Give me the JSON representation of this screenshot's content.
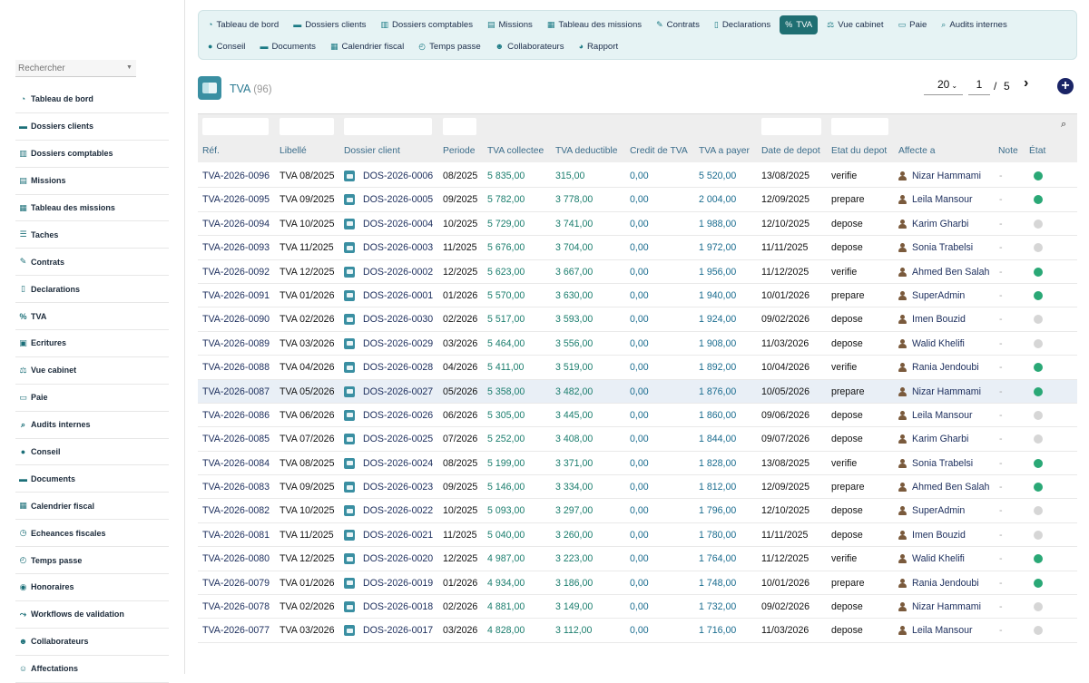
{
  "sidebar": {
    "search_placeholder": "Rechercher",
    "items": [
      {
        "label": "Tableau de bord",
        "icon": "dashboard-icon",
        "glyph": "◔"
      },
      {
        "label": "Dossiers clients",
        "icon": "folder-open-icon",
        "glyph": "▬"
      },
      {
        "label": "Dossiers comptables",
        "icon": "book-icon",
        "glyph": "▥"
      },
      {
        "label": "Missions",
        "icon": "briefcase-icon",
        "glyph": "▤"
      },
      {
        "label": "Tableau des missions",
        "icon": "table-icon",
        "glyph": "▦"
      },
      {
        "label": "Taches",
        "icon": "list-icon",
        "glyph": "☰"
      },
      {
        "label": "Contrats",
        "icon": "contract-icon",
        "glyph": "✎"
      },
      {
        "label": "Declarations",
        "icon": "document-icon",
        "glyph": "▯"
      },
      {
        "label": "TVA",
        "icon": "percent-icon",
        "glyph": "%"
      },
      {
        "label": "Ecritures",
        "icon": "ledger-icon",
        "glyph": "▣"
      },
      {
        "label": "Vue cabinet",
        "icon": "balance-scale-icon",
        "glyph": "⚖"
      },
      {
        "label": "Paie",
        "icon": "money-icon",
        "glyph": "▭"
      },
      {
        "label": "Audits internes",
        "icon": "search-icon",
        "glyph": "⌕"
      },
      {
        "label": "Conseil",
        "icon": "lightbulb-icon",
        "glyph": "●"
      },
      {
        "label": "Documents",
        "icon": "folder-icon",
        "glyph": "▬"
      },
      {
        "label": "Calendrier fiscal",
        "icon": "calendar-icon",
        "glyph": "▦"
      },
      {
        "label": "Echeances fiscales",
        "icon": "clock-icon",
        "glyph": "◷"
      },
      {
        "label": "Temps passe",
        "icon": "stopwatch-icon",
        "glyph": "◴"
      },
      {
        "label": "Honoraires",
        "icon": "money-bag-icon",
        "glyph": "◉"
      },
      {
        "label": "Workflows de validation",
        "icon": "workflow-icon",
        "glyph": "⤳"
      },
      {
        "label": "Collaborateurs",
        "icon": "users-icon",
        "glyph": "☻"
      },
      {
        "label": "Affectations",
        "icon": "user-tag-icon",
        "glyph": "☺"
      }
    ]
  },
  "topnav": {
    "row1": [
      {
        "label": "Tableau de bord",
        "icon": "dashboard-icon",
        "glyph": "◔",
        "active": false
      },
      {
        "label": "Dossiers clients",
        "icon": "folder-open-icon",
        "glyph": "▬",
        "active": false
      },
      {
        "label": "Dossiers comptables",
        "icon": "book-icon",
        "glyph": "▥",
        "active": false
      },
      {
        "label": "Missions",
        "icon": "briefcase-icon",
        "glyph": "▤",
        "active": false
      },
      {
        "label": "Tableau des missions",
        "icon": "table-icon",
        "glyph": "▦",
        "active": false
      },
      {
        "label": "Contrats",
        "icon": "contract-icon",
        "glyph": "✎",
        "active": false
      },
      {
        "label": "Declarations",
        "icon": "document-icon",
        "glyph": "▯",
        "active": false
      },
      {
        "label": "TVA",
        "icon": "percent-icon",
        "glyph": "%",
        "active": true
      },
      {
        "label": "Vue cabinet",
        "icon": "balance-scale-icon",
        "glyph": "⚖",
        "active": false
      },
      {
        "label": "Paie",
        "icon": "money-icon",
        "glyph": "▭",
        "active": false
      },
      {
        "label": "Audits internes",
        "icon": "search-icon",
        "glyph": "⌕",
        "active": false
      }
    ],
    "row2": [
      {
        "label": "Conseil",
        "icon": "lightbulb-icon",
        "glyph": "●",
        "active": false
      },
      {
        "label": "Documents",
        "icon": "folder-icon",
        "glyph": "▬",
        "active": false
      },
      {
        "label": "Calendrier fiscal",
        "icon": "calendar-icon",
        "glyph": "▦",
        "active": false
      },
      {
        "label": "Temps passe",
        "icon": "stopwatch-icon",
        "glyph": "◴",
        "active": false
      },
      {
        "label": "Collaborateurs",
        "icon": "users-icon",
        "glyph": "☻",
        "active": false
      },
      {
        "label": "Rapport",
        "icon": "pie-chart-icon",
        "glyph": "◕",
        "active": false
      }
    ]
  },
  "page": {
    "title": "TVA",
    "count": "(96)",
    "page_size": "20",
    "current_page": "1",
    "page_sep": "/",
    "total_pages": "5"
  },
  "table": {
    "columns": [
      "Réf.",
      "Libellé",
      "Dossier client",
      "Periode",
      "TVA collectee",
      "TVA deductible",
      "Credit de TVA",
      "TVA a payer",
      "Date de depot",
      "Etat du depot",
      "Affecte a",
      "Note",
      "État"
    ],
    "rows": [
      {
        "ref": "TVA-2026-0096",
        "libelle": "TVA 08/2025",
        "dossier": "DOS-2026-0006",
        "periode": "08/2025",
        "collectee": "5 835,00",
        "deductible": "315,00",
        "credit": "0,00",
        "payer": "5 520,00",
        "date": "13/08/2025",
        "etat_depot": "verifie",
        "affecte": "Nizar Hammami",
        "note": "-",
        "status": "green"
      },
      {
        "ref": "TVA-2026-0095",
        "libelle": "TVA 09/2025",
        "dossier": "DOS-2026-0005",
        "periode": "09/2025",
        "collectee": "5 782,00",
        "deductible": "3 778,00",
        "credit": "0,00",
        "payer": "2 004,00",
        "date": "12/09/2025",
        "etat_depot": "prepare",
        "affecte": "Leila Mansour",
        "note": "-",
        "status": "green"
      },
      {
        "ref": "TVA-2026-0094",
        "libelle": "TVA 10/2025",
        "dossier": "DOS-2026-0004",
        "periode": "10/2025",
        "collectee": "5 729,00",
        "deductible": "3 741,00",
        "credit": "0,00",
        "payer": "1 988,00",
        "date": "12/10/2025",
        "etat_depot": "depose",
        "affecte": "Karim Gharbi",
        "note": "-",
        "status": "grey"
      },
      {
        "ref": "TVA-2026-0093",
        "libelle": "TVA 11/2025",
        "dossier": "DOS-2026-0003",
        "periode": "11/2025",
        "collectee": "5 676,00",
        "deductible": "3 704,00",
        "credit": "0,00",
        "payer": "1 972,00",
        "date": "11/11/2025",
        "etat_depot": "depose",
        "affecte": "Sonia Trabelsi",
        "note": "-",
        "status": "grey"
      },
      {
        "ref": "TVA-2026-0092",
        "libelle": "TVA 12/2025",
        "dossier": "DOS-2026-0002",
        "periode": "12/2025",
        "collectee": "5 623,00",
        "deductible": "3 667,00",
        "credit": "0,00",
        "payer": "1 956,00",
        "date": "11/12/2025",
        "etat_depot": "verifie",
        "affecte": "Ahmed Ben Salah",
        "note": "-",
        "status": "green"
      },
      {
        "ref": "TVA-2026-0091",
        "libelle": "TVA 01/2026",
        "dossier": "DOS-2026-0001",
        "periode": "01/2026",
        "collectee": "5 570,00",
        "deductible": "3 630,00",
        "credit": "0,00",
        "payer": "1 940,00",
        "date": "10/01/2026",
        "etat_depot": "prepare",
        "affecte": "SuperAdmin",
        "note": "-",
        "status": "green"
      },
      {
        "ref": "TVA-2026-0090",
        "libelle": "TVA 02/2026",
        "dossier": "DOS-2026-0030",
        "periode": "02/2026",
        "collectee": "5 517,00",
        "deductible": "3 593,00",
        "credit": "0,00",
        "payer": "1 924,00",
        "date": "09/02/2026",
        "etat_depot": "depose",
        "affecte": "Imen Bouzid",
        "note": "-",
        "status": "grey"
      },
      {
        "ref": "TVA-2026-0089",
        "libelle": "TVA 03/2026",
        "dossier": "DOS-2026-0029",
        "periode": "03/2026",
        "collectee": "5 464,00",
        "deductible": "3 556,00",
        "credit": "0,00",
        "payer": "1 908,00",
        "date": "11/03/2026",
        "etat_depot": "depose",
        "affecte": "Walid Khelifi",
        "note": "-",
        "status": "grey"
      },
      {
        "ref": "TVA-2026-0088",
        "libelle": "TVA 04/2026",
        "dossier": "DOS-2026-0028",
        "periode": "04/2026",
        "collectee": "5 411,00",
        "deductible": "3 519,00",
        "credit": "0,00",
        "payer": "1 892,00",
        "date": "10/04/2026",
        "etat_depot": "verifie",
        "affecte": "Rania Jendoubi",
        "note": "-",
        "status": "green"
      },
      {
        "ref": "TVA-2026-0087",
        "libelle": "TVA 05/2026",
        "dossier": "DOS-2026-0027",
        "periode": "05/2026",
        "collectee": "5 358,00",
        "deductible": "3 482,00",
        "credit": "0,00",
        "payer": "1 876,00",
        "date": "10/05/2026",
        "etat_depot": "prepare",
        "affecte": "Nizar Hammami",
        "note": "-",
        "status": "green",
        "highlighted": true
      },
      {
        "ref": "TVA-2026-0086",
        "libelle": "TVA 06/2026",
        "dossier": "DOS-2026-0026",
        "periode": "06/2026",
        "collectee": "5 305,00",
        "deductible": "3 445,00",
        "credit": "0,00",
        "payer": "1 860,00",
        "date": "09/06/2026",
        "etat_depot": "depose",
        "affecte": "Leila Mansour",
        "note": "-",
        "status": "grey"
      },
      {
        "ref": "TVA-2026-0085",
        "libelle": "TVA 07/2026",
        "dossier": "DOS-2026-0025",
        "periode": "07/2026",
        "collectee": "5 252,00",
        "deductible": "3 408,00",
        "credit": "0,00",
        "payer": "1 844,00",
        "date": "09/07/2026",
        "etat_depot": "depose",
        "affecte": "Karim Gharbi",
        "note": "-",
        "status": "grey"
      },
      {
        "ref": "TVA-2026-0084",
        "libelle": "TVA 08/2025",
        "dossier": "DOS-2026-0024",
        "periode": "08/2025",
        "collectee": "5 199,00",
        "deductible": "3 371,00",
        "credit": "0,00",
        "payer": "1 828,00",
        "date": "13/08/2025",
        "etat_depot": "verifie",
        "affecte": "Sonia Trabelsi",
        "note": "-",
        "status": "green"
      },
      {
        "ref": "TVA-2026-0083",
        "libelle": "TVA 09/2025",
        "dossier": "DOS-2026-0023",
        "periode": "09/2025",
        "collectee": "5 146,00",
        "deductible": "3 334,00",
        "credit": "0,00",
        "payer": "1 812,00",
        "date": "12/09/2025",
        "etat_depot": "prepare",
        "affecte": "Ahmed Ben Salah",
        "note": "-",
        "status": "green"
      },
      {
        "ref": "TVA-2026-0082",
        "libelle": "TVA 10/2025",
        "dossier": "DOS-2026-0022",
        "periode": "10/2025",
        "collectee": "5 093,00",
        "deductible": "3 297,00",
        "credit": "0,00",
        "payer": "1 796,00",
        "date": "12/10/2025",
        "etat_depot": "depose",
        "affecte": "SuperAdmin",
        "note": "-",
        "status": "grey"
      },
      {
        "ref": "TVA-2026-0081",
        "libelle": "TVA 11/2025",
        "dossier": "DOS-2026-0021",
        "periode": "11/2025",
        "collectee": "5 040,00",
        "deductible": "3 260,00",
        "credit": "0,00",
        "payer": "1 780,00",
        "date": "11/11/2025",
        "etat_depot": "depose",
        "affecte": "Imen Bouzid",
        "note": "-",
        "status": "grey"
      },
      {
        "ref": "TVA-2026-0080",
        "libelle": "TVA 12/2025",
        "dossier": "DOS-2026-0020",
        "periode": "12/2025",
        "collectee": "4 987,00",
        "deductible": "3 223,00",
        "credit": "0,00",
        "payer": "1 764,00",
        "date": "11/12/2025",
        "etat_depot": "verifie",
        "affecte": "Walid Khelifi",
        "note": "-",
        "status": "green"
      },
      {
        "ref": "TVA-2026-0079",
        "libelle": "TVA 01/2026",
        "dossier": "DOS-2026-0019",
        "periode": "01/2026",
        "collectee": "4 934,00",
        "deductible": "3 186,00",
        "credit": "0,00",
        "payer": "1 748,00",
        "date": "10/01/2026",
        "etat_depot": "prepare",
        "affecte": "Rania Jendoubi",
        "note": "-",
        "status": "green"
      },
      {
        "ref": "TVA-2026-0078",
        "libelle": "TVA 02/2026",
        "dossier": "DOS-2026-0018",
        "periode": "02/2026",
        "collectee": "4 881,00",
        "deductible": "3 149,00",
        "credit": "0,00",
        "payer": "1 732,00",
        "date": "09/02/2026",
        "etat_depot": "depose",
        "affecte": "Nizar Hammami",
        "note": "-",
        "status": "grey"
      },
      {
        "ref": "TVA-2026-0077",
        "libelle": "TVA 03/2026",
        "dossier": "DOS-2026-0017",
        "periode": "03/2026",
        "collectee": "4 828,00",
        "deductible": "3 112,00",
        "credit": "0,00",
        "payer": "1 716,00",
        "date": "11/03/2026",
        "etat_depot": "depose",
        "affecte": "Leila Mansour",
        "note": "-",
        "status": "grey"
      }
    ]
  },
  "colors": {
    "accent": "#1f6f72",
    "status_green": "#2aa876",
    "status_grey": "#d6d6d6",
    "link": "#1b2d5c",
    "amount": "#1a7d6d"
  }
}
